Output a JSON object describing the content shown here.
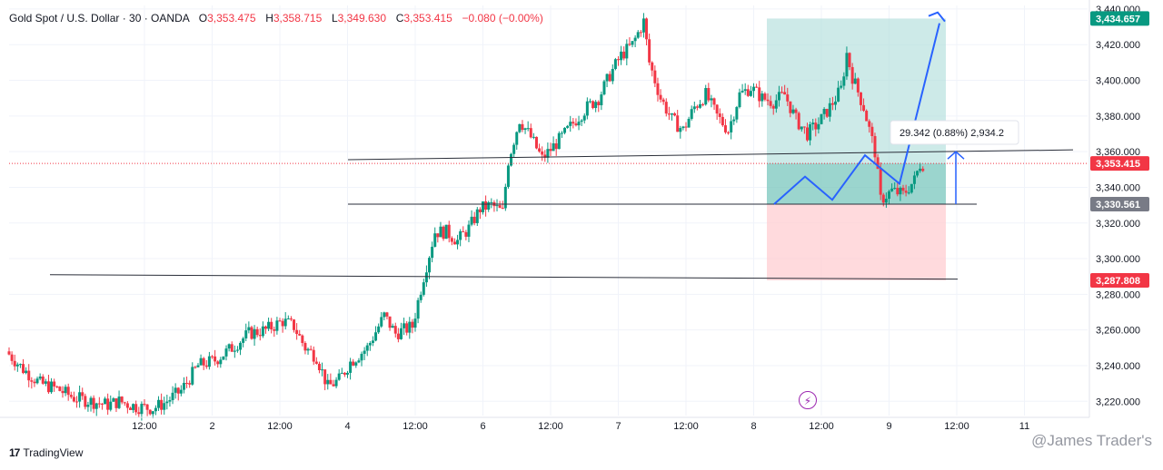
{
  "legend": {
    "symbol": "Gold Spot / U.S. Dollar · 30 · OANDA",
    "open_label": "O",
    "open": "3,353.475",
    "high_label": "H",
    "high": "3,358.715",
    "low_label": "L",
    "low": "3,349.630",
    "close_label": "C",
    "close": "3,353.415",
    "change": "−0.080 (−0.00%)"
  },
  "brand": {
    "logo": "17",
    "name": "TradingView"
  },
  "watermark": "@James Trader's",
  "alert_icon": "lightning-icon",
  "colors": {
    "up": "#089981",
    "down": "#f23645",
    "target_zone": "#b2dfdb",
    "stop_zone": "#ffcdd2",
    "projection": "#2962ff",
    "entry_tag": "#787b86"
  },
  "chart_data": {
    "type": "candlestick",
    "ylim": [
      3212,
      3442
    ],
    "y_ticks": [
      3220,
      3240,
      3260,
      3280,
      3300,
      3320,
      3340,
      3360,
      3380,
      3400,
      3420,
      3440
    ],
    "y_tick_labels": [
      "3,220.000",
      "3,240.000",
      "3,260.000",
      "3,280.000",
      "3,300.000",
      "3,320.000",
      "3,340.000",
      "3,360.000",
      "3,380.000",
      "3,400.000",
      "3,420.000",
      "3,440.000"
    ],
    "x_labels": [
      {
        "label": "12:00",
        "t": 24
      },
      {
        "label": "2",
        "t": 36
      },
      {
        "label": "12:00",
        "t": 48
      },
      {
        "label": "4",
        "t": 60
      },
      {
        "label": "12:00",
        "t": 72
      },
      {
        "label": "6",
        "t": 84
      },
      {
        "label": "12:00",
        "t": 96
      },
      {
        "label": "7",
        "t": 108
      },
      {
        "label": "12:00",
        "t": 120
      },
      {
        "label": "8",
        "t": 132
      },
      {
        "label": "12:00",
        "t": 144
      },
      {
        "label": "9",
        "t": 156
      },
      {
        "label": "12:00",
        "t": 168
      },
      {
        "label": "11",
        "t": 180
      }
    ],
    "t_range": [
      0,
      200
    ],
    "path_anchors": [
      {
        "t": 0,
        "price": 3248
      },
      {
        "t": 3,
        "price": 3238
      },
      {
        "t": 6,
        "price": 3230
      },
      {
        "t": 9,
        "price": 3227
      },
      {
        "t": 12,
        "price": 3222
      },
      {
        "t": 15,
        "price": 3220
      },
      {
        "t": 18,
        "price": 3218
      },
      {
        "t": 20,
        "price": 3220
      },
      {
        "t": 23,
        "price": 3217
      },
      {
        "t": 26,
        "price": 3216
      },
      {
        "t": 28,
        "price": 3219
      },
      {
        "t": 31,
        "price": 3226
      },
      {
        "t": 34,
        "price": 3240
      },
      {
        "t": 37,
        "price": 3243
      },
      {
        "t": 40,
        "price": 3250
      },
      {
        "t": 43,
        "price": 3258
      },
      {
        "t": 46,
        "price": 3260
      },
      {
        "t": 49,
        "price": 3265
      },
      {
        "t": 51,
        "price": 3262
      },
      {
        "t": 53,
        "price": 3250
      },
      {
        "t": 55,
        "price": 3245
      },
      {
        "t": 57,
        "price": 3228
      },
      {
        "t": 59,
        "price": 3232
      },
      {
        "t": 61,
        "price": 3242
      },
      {
        "t": 64,
        "price": 3250
      },
      {
        "t": 67,
        "price": 3268
      },
      {
        "t": 69,
        "price": 3258
      },
      {
        "t": 72,
        "price": 3262
      },
      {
        "t": 74,
        "price": 3290
      },
      {
        "t": 76,
        "price": 3315
      },
      {
        "t": 78,
        "price": 3315
      },
      {
        "t": 80,
        "price": 3310
      },
      {
        "t": 82,
        "price": 3317
      },
      {
        "t": 84,
        "price": 3328
      },
      {
        "t": 86,
        "price": 3330
      },
      {
        "t": 88,
        "price": 3326
      },
      {
        "t": 89,
        "price": 3355
      },
      {
        "t": 91,
        "price": 3378
      },
      {
        "t": 93,
        "price": 3368
      },
      {
        "t": 95,
        "price": 3356
      },
      {
        "t": 97,
        "price": 3363
      },
      {
        "t": 99,
        "price": 3370
      },
      {
        "t": 101,
        "price": 3378
      },
      {
        "t": 103,
        "price": 3385
      },
      {
        "t": 105,
        "price": 3390
      },
      {
        "t": 107,
        "price": 3403
      },
      {
        "t": 109,
        "price": 3414
      },
      {
        "t": 111,
        "price": 3420
      },
      {
        "t": 113,
        "price": 3433
      },
      {
        "t": 114,
        "price": 3410
      },
      {
        "t": 116,
        "price": 3390
      },
      {
        "t": 118,
        "price": 3378
      },
      {
        "t": 120,
        "price": 3372
      },
      {
        "t": 122,
        "price": 3385
      },
      {
        "t": 124,
        "price": 3392
      },
      {
        "t": 126,
        "price": 3380
      },
      {
        "t": 128,
        "price": 3372
      },
      {
        "t": 130,
        "price": 3392
      },
      {
        "t": 132,
        "price": 3396
      },
      {
        "t": 134,
        "price": 3390
      },
      {
        "t": 136,
        "price": 3388
      },
      {
        "t": 138,
        "price": 3392
      },
      {
        "t": 140,
        "price": 3378
      },
      {
        "t": 142,
        "price": 3370
      },
      {
        "t": 144,
        "price": 3376
      },
      {
        "t": 146,
        "price": 3385
      },
      {
        "t": 148,
        "price": 3395
      },
      {
        "t": 149,
        "price": 3415
      },
      {
        "t": 150,
        "price": 3402
      },
      {
        "t": 152,
        "price": 3385
      },
      {
        "t": 154,
        "price": 3360
      },
      {
        "t": 155,
        "price": 3333
      },
      {
        "t": 157,
        "price": 3338
      },
      {
        "t": 159,
        "price": 3336
      },
      {
        "t": 161,
        "price": 3344
      },
      {
        "t": 162,
        "price": 3353
      }
    ],
    "levels": [
      3355.5,
      3330.561,
      3290
    ],
    "position": {
      "entry": 3330.561,
      "target": 3434.657,
      "stop": 3287.808,
      "last": 3353.415,
      "entry_label": "3,330.561",
      "target_label": "3,434.657",
      "stop_label": "3,287.808",
      "last_label": "3,353.415"
    },
    "measure": {
      "text": "29.342 (0.88%) 2,934.2",
      "from": 3330.561,
      "to": 3360
    },
    "projection": [
      {
        "x": 852,
        "price": 3330.561
      },
      {
        "x": 886,
        "price": 3346
      },
      {
        "x": 916,
        "price": 3333
      },
      {
        "x": 952,
        "price": 3358
      },
      {
        "x": 990,
        "price": 3342
      },
      {
        "x": 1034,
        "price": 3432
      }
    ]
  }
}
